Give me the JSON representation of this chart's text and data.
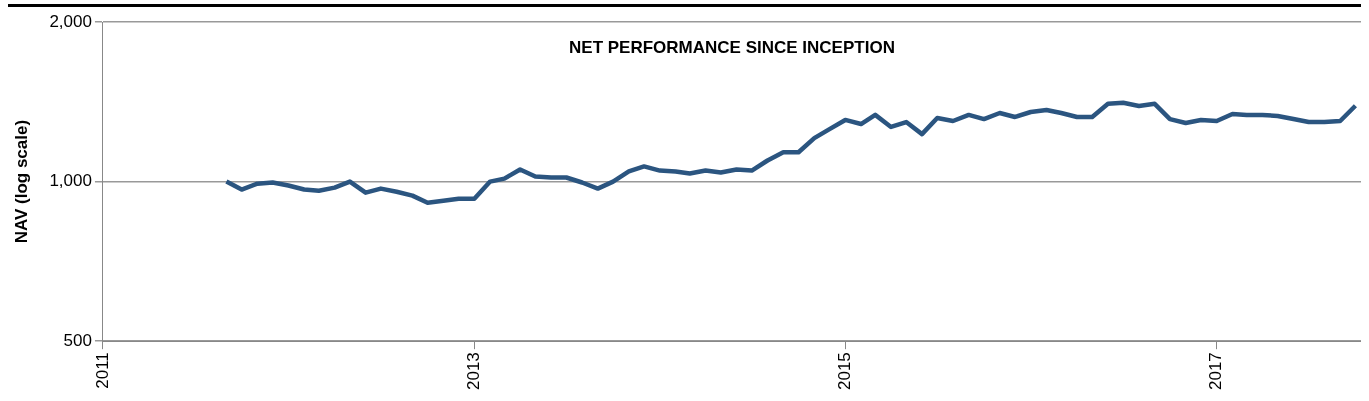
{
  "chart_data": {
    "type": "line",
    "title": "NET PERFORMANCE SINCE INCEPTION",
    "ylabel": "NAV (log scale)",
    "log": "y",
    "grid": "y",
    "legend": false,
    "marker": "none",
    "line_style": "solid",
    "x": [
      "2011-09",
      "2011-10",
      "2011-11",
      "2011-12",
      "2012-01",
      "2012-02",
      "2012-03",
      "2012-04",
      "2012-05",
      "2012-06",
      "2012-07",
      "2012-08",
      "2012-09",
      "2012-10",
      "2012-11",
      "2012-12",
      "2013-01",
      "2013-02",
      "2013-03",
      "2013-04",
      "2013-05",
      "2013-06",
      "2013-07",
      "2013-08",
      "2013-09",
      "2013-10",
      "2013-11",
      "2013-12",
      "2014-01",
      "2014-02",
      "2014-03",
      "2014-04",
      "2014-05",
      "2014-06",
      "2014-07",
      "2014-08",
      "2014-09",
      "2014-10",
      "2014-11",
      "2014-12",
      "2015-01",
      "2015-02",
      "2015-03",
      "2015-04",
      "2015-05",
      "2015-06",
      "2015-07",
      "2015-08",
      "2015-09",
      "2015-10",
      "2015-11",
      "2015-12",
      "2016-01",
      "2016-02",
      "2016-03",
      "2016-04",
      "2016-05",
      "2016-06",
      "2016-07",
      "2016-08",
      "2016-09",
      "2016-10",
      "2016-11",
      "2016-12",
      "2017-01",
      "2017-02",
      "2017-03",
      "2017-04",
      "2017-05",
      "2017-06",
      "2017-07",
      "2017-08",
      "2017-09",
      "2017-10"
    ],
    "series": [
      {
        "color": "#2b5580",
        "values": [
          1000,
          966,
          991,
          996,
          983,
          966,
          961,
          974,
          1000,
          953,
          970,
          957,
          941,
          912,
          920,
          928,
          928,
          1000,
          1013,
          1054,
          1022,
          1018,
          1018,
          996,
          970,
          1000,
          1045,
          1068,
          1049,
          1045,
          1036,
          1049,
          1040,
          1054,
          1049,
          1096,
          1136,
          1136,
          1208,
          1256,
          1307,
          1284,
          1336,
          1268,
          1295,
          1229,
          1318,
          1301,
          1336,
          1312,
          1347,
          1324,
          1353,
          1365,
          1347,
          1324,
          1324,
          1402,
          1408,
          1389,
          1402,
          1312,
          1290,
          1307,
          1301,
          1341,
          1336,
          1336,
          1330,
          1312,
          1295,
          1295,
          1301,
          1390
        ]
      }
    ],
    "xlim": [
      "2011-01-01",
      "2017-10-12"
    ],
    "xticks": [
      "2011",
      "2013",
      "2015",
      "2017"
    ],
    "ylim": [
      500,
      2000
    ],
    "yticks": [
      500,
      {
        "value": 1000,
        "label": "1,000"
      },
      {
        "value": 2000,
        "label": "2,000"
      }
    ]
  }
}
